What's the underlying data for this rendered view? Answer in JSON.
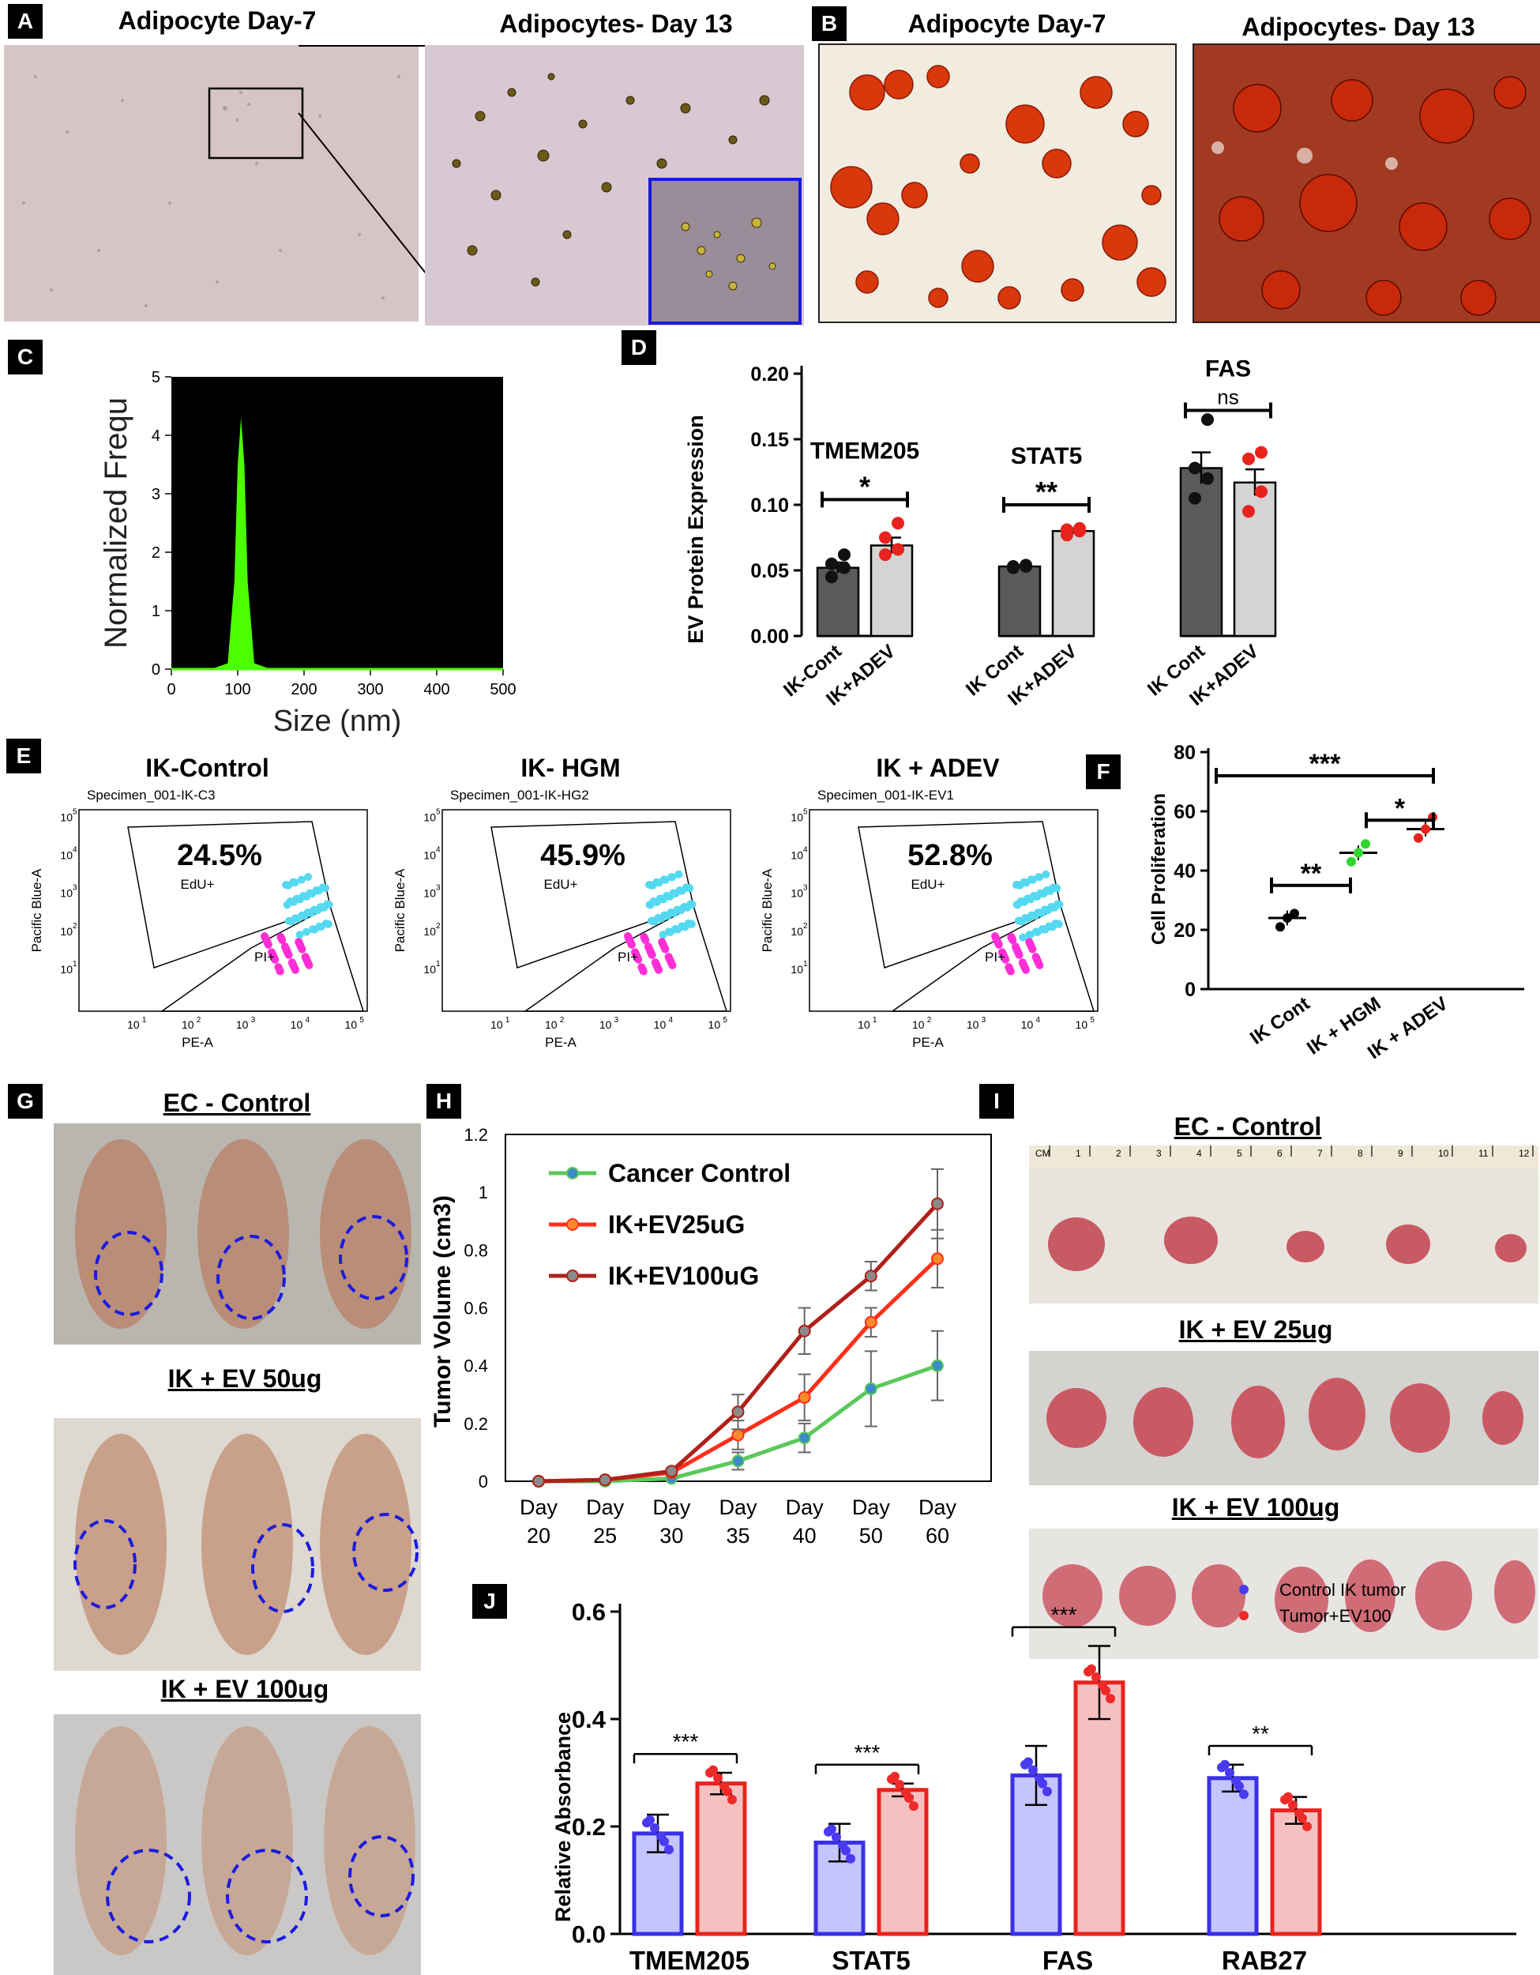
{
  "panels": {
    "A": {
      "label": "A",
      "titles": [
        "Adipocyte Day-7",
        "Adipocytes- Day 13"
      ]
    },
    "B": {
      "label": "B",
      "titles": [
        "Adipocyte Day-7",
        "Adipocytes- Day 13"
      ]
    },
    "C": {
      "label": "C",
      "ylabel": "Normalized Frequ",
      "xlabel": "Size (nm)",
      "yticks": [
        "0",
        "1",
        "2",
        "3",
        "4",
        "5"
      ],
      "xticks": [
        "0",
        "100",
        "200",
        "300",
        "400",
        "500"
      ]
    },
    "D": {
      "label": "D",
      "ylabel": "EV Protein Expression",
      "yticks": [
        "0.00",
        "0.05",
        "0.10",
        "0.15",
        "0.20"
      ],
      "groups": [
        {
          "name": "TMEM205",
          "sig": "*",
          "labels": [
            "IK-Cont",
            "IK+ADEV"
          ],
          "values": [
            0.052,
            0.069
          ],
          "points": [
            [
              0.045,
              0.052,
              0.055,
              0.062
            ],
            [
              0.062,
              0.066,
              0.075,
              0.086
            ]
          ]
        },
        {
          "name": "STAT5",
          "sig": "**",
          "labels": [
            "IK Cont",
            "IK+ADEV"
          ],
          "values": [
            0.053,
            0.08
          ],
          "points": [
            [
              0.052,
              0.053,
              0.053,
              0.054
            ],
            [
              0.077,
              0.08,
              0.081,
              0.082
            ]
          ]
        },
        {
          "name": "FAS",
          "sig": "ns",
          "labels": [
            "IK Cont",
            "IK+ADEV"
          ],
          "values": [
            0.128,
            0.117
          ],
          "points": [
            [
              0.105,
              0.12,
              0.128,
              0.165
            ],
            [
              0.095,
              0.11,
              0.135,
              0.14
            ]
          ]
        }
      ]
    },
    "E": {
      "label": "E",
      "plots": [
        {
          "title": "IK-Control",
          "specimen": "Specimen_001-IK-C3",
          "pct": "24.5%"
        },
        {
          "title": "IK- HGM",
          "specimen": "Specimen_001-IK-HG2",
          "pct": "45.9%"
        },
        {
          "title": "IK + ADEV",
          "specimen": "Specimen_001-IK-EV1",
          "pct": "52.8%"
        }
      ],
      "gate_top": "EdU+",
      "gate_bottom": "PI+",
      "ylabel": "Pacific Blue-A",
      "xlabel": "PE-A",
      "axis_ticks": [
        "10",
        "1",
        "2",
        "3",
        "4",
        "5"
      ]
    },
    "F": {
      "label": "F",
      "ylabel": "Cell Proliferation",
      "yticks": [
        "0",
        "20",
        "40",
        "60",
        "80"
      ],
      "categories": [
        "IK Cont",
        "IK + HGM",
        "IK + ADEV"
      ],
      "means": [
        24,
        46,
        54
      ],
      "sig": [
        "**",
        "*",
        "***"
      ]
    },
    "G": {
      "label": "G",
      "titles": [
        "EC - Control",
        "IK + EV 50ug",
        "IK + EV 100ug"
      ]
    },
    "H": {
      "label": "H",
      "ylabel": "Tumor Volume (cm3)",
      "yticks": [
        "0",
        "0.2",
        "0.4",
        "0.6",
        "0.8",
        "1",
        "1.2"
      ],
      "xticks": [
        [
          "Day",
          "20"
        ],
        [
          "Day",
          "25"
        ],
        [
          "Day",
          "30"
        ],
        [
          "Day",
          "35"
        ],
        [
          "Day",
          "40"
        ],
        [
          "Day",
          "50"
        ],
        [
          "Day",
          "60"
        ]
      ],
      "legend": [
        "Cancer Control",
        "IK+EV25uG",
        "IK+EV100uG"
      ]
    },
    "I": {
      "label": "I",
      "titles": [
        "EC - Control",
        "IK + EV 25ug",
        "IK + EV 100ug"
      ],
      "ruler": [
        "CM",
        "1",
        "2",
        "3",
        "4",
        "5",
        "6",
        "7",
        "8",
        "9",
        "10",
        "11",
        "12"
      ]
    },
    "J": {
      "label": "J",
      "ylabel": "Relative Absorbance",
      "yticks": [
        "0.0",
        "0.2",
        "0.4",
        "0.6"
      ],
      "legend": [
        "Control IK tumor",
        "Tumor+EV100"
      ],
      "categories": [
        "TMEM205",
        "STAT5",
        "FAS",
        "RAB27"
      ],
      "sig": [
        "***",
        "***",
        "***",
        "**"
      ]
    }
  },
  "chart_data": [
    {
      "type": "line",
      "panel": "C",
      "title": "",
      "xlabel": "Size (nm)",
      "ylabel": "Normalized Frequ",
      "xlim": [
        0,
        500
      ],
      "ylim": [
        0,
        5
      ],
      "series": [
        {
          "values": [
            [
              60,
              0
            ],
            [
              85,
              0.1
            ],
            [
              95,
              1.5
            ],
            [
              100,
              3.5
            ],
            [
              105,
              4.3
            ],
            [
              110,
              3.5
            ],
            [
              115,
              1.5
            ],
            [
              125,
              0.1
            ],
            [
              150,
              0
            ]
          ]
        }
      ]
    },
    {
      "type": "bar",
      "panel": "D",
      "ylabel": "EV Protein Expression",
      "ylim": [
        0,
        0.2
      ],
      "categories": [
        "TMEM205 IK-Cont",
        "TMEM205 IK+ADEV",
        "STAT5 IK Cont",
        "STAT5 IK+ADEV",
        "FAS IK Cont",
        "FAS IK+ADEV"
      ],
      "values": [
        0.052,
        0.069,
        0.053,
        0.08,
        0.128,
        0.117
      ],
      "errors": [
        0.004,
        0.006,
        0.001,
        0.002,
        0.012,
        0.01
      ]
    },
    {
      "type": "scatter",
      "panel": "F",
      "ylabel": "Cell Proliferation",
      "ylim": [
        0,
        80
      ],
      "categories": [
        "IK Cont",
        "IK + HGM",
        "IK + ADEV"
      ],
      "means": [
        24,
        46,
        54
      ],
      "points": [
        [
          21,
          24,
          25.5
        ],
        [
          43,
          46,
          49
        ],
        [
          51,
          54,
          58
        ]
      ]
    },
    {
      "type": "line",
      "panel": "H",
      "ylabel": "Tumor Volume (cm3)",
      "ylim": [
        0,
        1.2
      ],
      "x": [
        "Day 20",
        "Day 25",
        "Day 30",
        "Day 35",
        "Day 40",
        "Day 50",
        "Day 60"
      ],
      "series": [
        {
          "name": "Cancer Control",
          "values": [
            0,
            0,
            0.01,
            0.07,
            0.15,
            0.32,
            0.4
          ],
          "errors": [
            0,
            0,
            0,
            0.03,
            0.05,
            0.13,
            0.12
          ]
        },
        {
          "name": "IK+EV25uG",
          "values": [
            0,
            0.005,
            0.03,
            0.16,
            0.29,
            0.55,
            0.77
          ],
          "errors": [
            0,
            0,
            0,
            0.05,
            0.08,
            0.05,
            0.1
          ]
        },
        {
          "name": "IK+EV100uG",
          "values": [
            0,
            0.005,
            0.035,
            0.24,
            0.52,
            0.71,
            0.96
          ],
          "errors": [
            0,
            0,
            0,
            0.06,
            0.08,
            0.05,
            0.12
          ]
        }
      ]
    },
    {
      "type": "bar",
      "panel": "J",
      "ylabel": "Relative Absorbance",
      "ylim": [
        0,
        0.6
      ],
      "categories": [
        "TMEM205",
        "STAT5",
        "FAS",
        "RAB27"
      ],
      "series": [
        {
          "name": "Control IK tumor",
          "values": [
            0.187,
            0.17,
            0.295,
            0.29
          ],
          "errors": [
            0.035,
            0.035,
            0.055,
            0.025
          ]
        },
        {
          "name": "Tumor+EV100",
          "values": [
            0.28,
            0.268,
            0.468,
            0.23
          ],
          "errors": [
            0.02,
            0.012,
            0.068,
            0.025
          ]
        }
      ]
    }
  ],
  "colors": {
    "dark_bar": "#5a5a5a",
    "light_bar": "#d4d4d4",
    "red": "#e8231d",
    "green_peak": "#4cff00",
    "cyan": "#55d9f0",
    "magenta": "#ff2ed6",
    "blue_bar": "#c4c4ff",
    "blue_edge": "#3a30e8",
    "pink_bar": "#f7c0c0",
    "line_green": "#5bc85b",
    "line_red": "#ff2f1a",
    "line_darkred": "#b0201a"
  }
}
